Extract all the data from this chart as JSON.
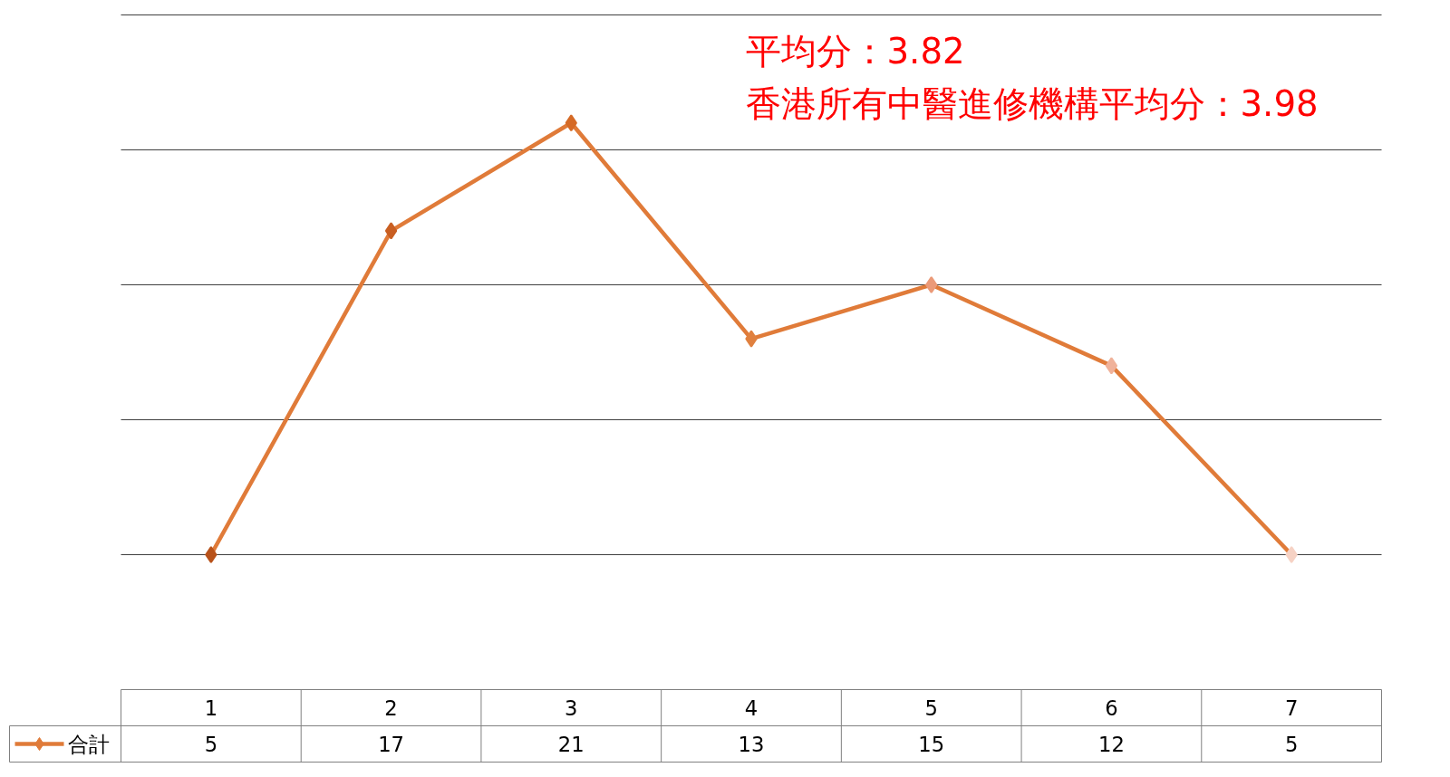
{
  "chart_data": {
    "type": "line",
    "categories": [
      "1",
      "2",
      "3",
      "4",
      "5",
      "6",
      "7"
    ],
    "series": [
      {
        "name": "合計",
        "color": "#e07b39",
        "values": [
          5,
          17,
          21,
          13,
          15,
          12,
          5
        ],
        "colors": [
          "#b8521a",
          "#c95f22",
          "#d56a26",
          "#e0803f",
          "#eb9a78",
          "#f0b29a",
          "#f6d2c4"
        ]
      }
    ],
    "ylim": [
      0,
      25
    ],
    "yticks": [
      {
        "value": 5,
        "label": null
      },
      {
        "value": 10,
        "label": null
      },
      {
        "value": 15,
        "label": null
      },
      {
        "value": 20,
        "label": null
      },
      {
        "value": 25,
        "label": null
      }
    ],
    "grid": "y",
    "data_labels": true,
    "legend": "bottom left",
    "marker": "diamond",
    "line_style": "solid",
    "annotations": [
      "平均分：3.82",
      "香港所有中醫進修機構平均分：3.98"
    ]
  }
}
